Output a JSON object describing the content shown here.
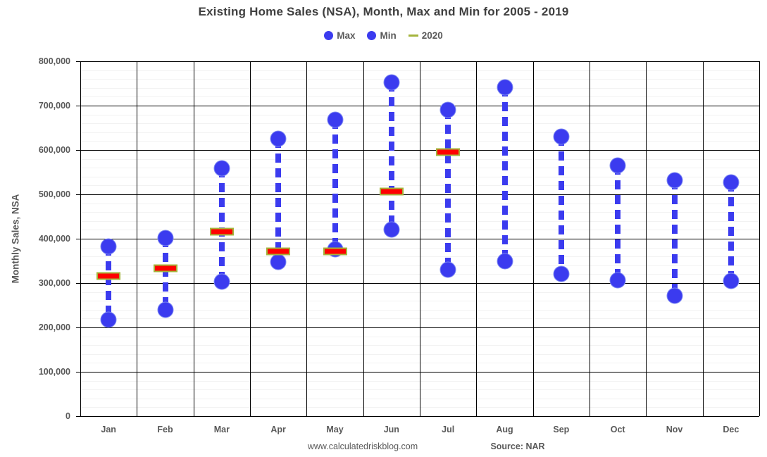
{
  "title": "Existing Home Sales (NSA), Month, Max and Min for 2005 - 2019",
  "legend": [
    {
      "label": "Max",
      "marker": "circle",
      "color": "#3b3bef"
    },
    {
      "label": "Min",
      "marker": "circle",
      "color": "#3b3bef"
    },
    {
      "label": "2020",
      "marker": "dash",
      "color": "#a4b43c"
    }
  ],
  "footer": {
    "website": "www.calculatedriskblog.com",
    "source": "Source: NAR"
  },
  "chart_data": {
    "type": "scatter",
    "subtype": "high-low-range",
    "title": "Existing Home Sales (NSA), Month, Max and Min for 2005 - 2019",
    "xlabel": "",
    "ylabel": "Monthly Sales, NSA",
    "ylim": [
      0,
      800000
    ],
    "ytick_interval": 100000,
    "minor_ytick_interval": 20000,
    "grid": true,
    "legend_position": "top",
    "categories": [
      "Jan",
      "Feb",
      "Mar",
      "Apr",
      "May",
      "Jun",
      "Jul",
      "Aug",
      "Sep",
      "Oct",
      "Nov",
      "Dec"
    ],
    "series": [
      {
        "name": "Max",
        "marker": "circle",
        "color": "#3b3bef",
        "values": [
          383000,
          402000,
          559000,
          625000,
          668000,
          752000,
          690000,
          742000,
          630000,
          565000,
          532000,
          527000
        ]
      },
      {
        "name": "Min",
        "marker": "circle",
        "color": "#3b3bef",
        "values": [
          217000,
          239000,
          303000,
          347000,
          376000,
          421000,
          330000,
          350000,
          320000,
          307000,
          271000,
          305000
        ]
      },
      {
        "name": "2020",
        "marker": "dash",
        "color": "#ff0000",
        "border_color": "#a4b43c",
        "values": [
          316000,
          334000,
          416000,
          372000,
          371000,
          506000,
          596000,
          null,
          null,
          null,
          null,
          null
        ]
      }
    ],
    "colors": {
      "point_blue": "#3b3bef",
      "point_blue_edge": "#7b87f2",
      "dash_red": "#ff0000",
      "dash_olive_border": "#a4b43c",
      "text_gray": "#595959",
      "grid_major": "#000000",
      "grid_minor": "#f2f2f2"
    }
  }
}
